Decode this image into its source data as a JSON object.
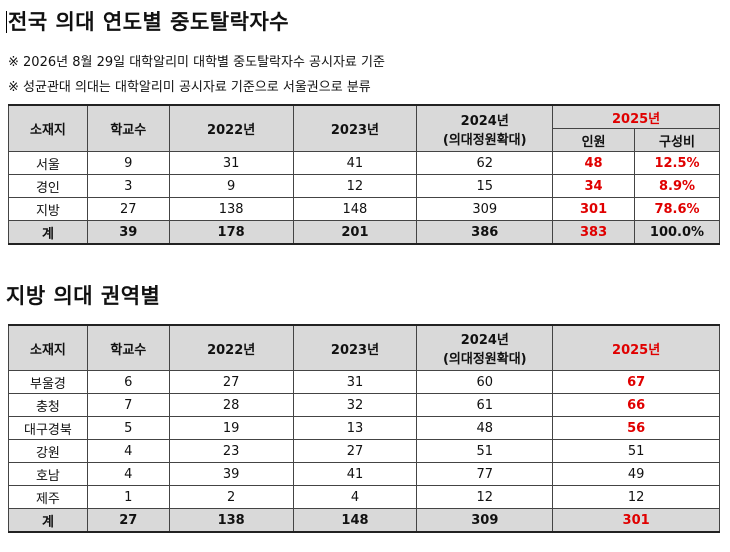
{
  "title1": "전국 의대 연도별 중도탈락자수",
  "notes": [
    "※ 2026년 8월 29일 대학알리미 대학별 중도탈락자수 공시자료 기준",
    "※ 성균관대 의대는 대학알리미 공시자료 기준으로 서울권으로 분류"
  ],
  "table1": {
    "headers": {
      "region": "소재지",
      "schools": "학교수",
      "y2022": "2022년",
      "y2023": "2023년",
      "y2024_line1": "2024년",
      "y2024_line2": "(의대정원확대)",
      "y2025": "2025년",
      "y2025_count": "인원",
      "y2025_share": "구성비"
    },
    "rows": [
      {
        "region": "서울",
        "schools": "9",
        "y2022": "31",
        "y2023": "41",
        "y2024": "62",
        "y2025": "48",
        "share": "12.5%"
      },
      {
        "region": "경인",
        "schools": "3",
        "y2022": "9",
        "y2023": "12",
        "y2024": "15",
        "y2025": "34",
        "share": "8.9%"
      },
      {
        "region": "지방",
        "schools": "27",
        "y2022": "138",
        "y2023": "148",
        "y2024": "309",
        "y2025": "301",
        "share": "78.6%"
      }
    ],
    "total": {
      "region": "계",
      "schools": "39",
      "y2022": "178",
      "y2023": "201",
      "y2024": "386",
      "y2025": "383",
      "share": "100.0%"
    }
  },
  "title2": "지방 의대 권역별",
  "table2": {
    "headers": {
      "region": "소재지",
      "schools": "학교수",
      "y2022": "2022년",
      "y2023": "2023년",
      "y2024_line1": "2024년",
      "y2024_line2": "(의대정원확대)",
      "y2025": "2025년"
    },
    "rows": [
      {
        "region": "부울경",
        "schools": "6",
        "y2022": "27",
        "y2023": "31",
        "y2024": "60",
        "y2025": "67",
        "highlight": true
      },
      {
        "region": "충청",
        "schools": "7",
        "y2022": "28",
        "y2023": "32",
        "y2024": "61",
        "y2025": "66",
        "highlight": true
      },
      {
        "region": "대구경북",
        "schools": "5",
        "y2022": "19",
        "y2023": "13",
        "y2024": "48",
        "y2025": "56",
        "highlight": true
      },
      {
        "region": "강원",
        "schools": "4",
        "y2022": "23",
        "y2023": "27",
        "y2024": "51",
        "y2025": "51",
        "highlight": false
      },
      {
        "region": "호남",
        "schools": "4",
        "y2022": "39",
        "y2023": "41",
        "y2024": "77",
        "y2025": "49",
        "highlight": false
      },
      {
        "region": "제주",
        "schools": "1",
        "y2022": "2",
        "y2023": "4",
        "y2024": "12",
        "y2025": "12",
        "highlight": false
      }
    ],
    "total": {
      "region": "계",
      "schools": "27",
      "y2022": "138",
      "y2023": "148",
      "y2024": "309",
      "y2025": "301"
    }
  },
  "colors": {
    "accent_red": "#e00000",
    "header_gray": "#d9d9d9"
  }
}
